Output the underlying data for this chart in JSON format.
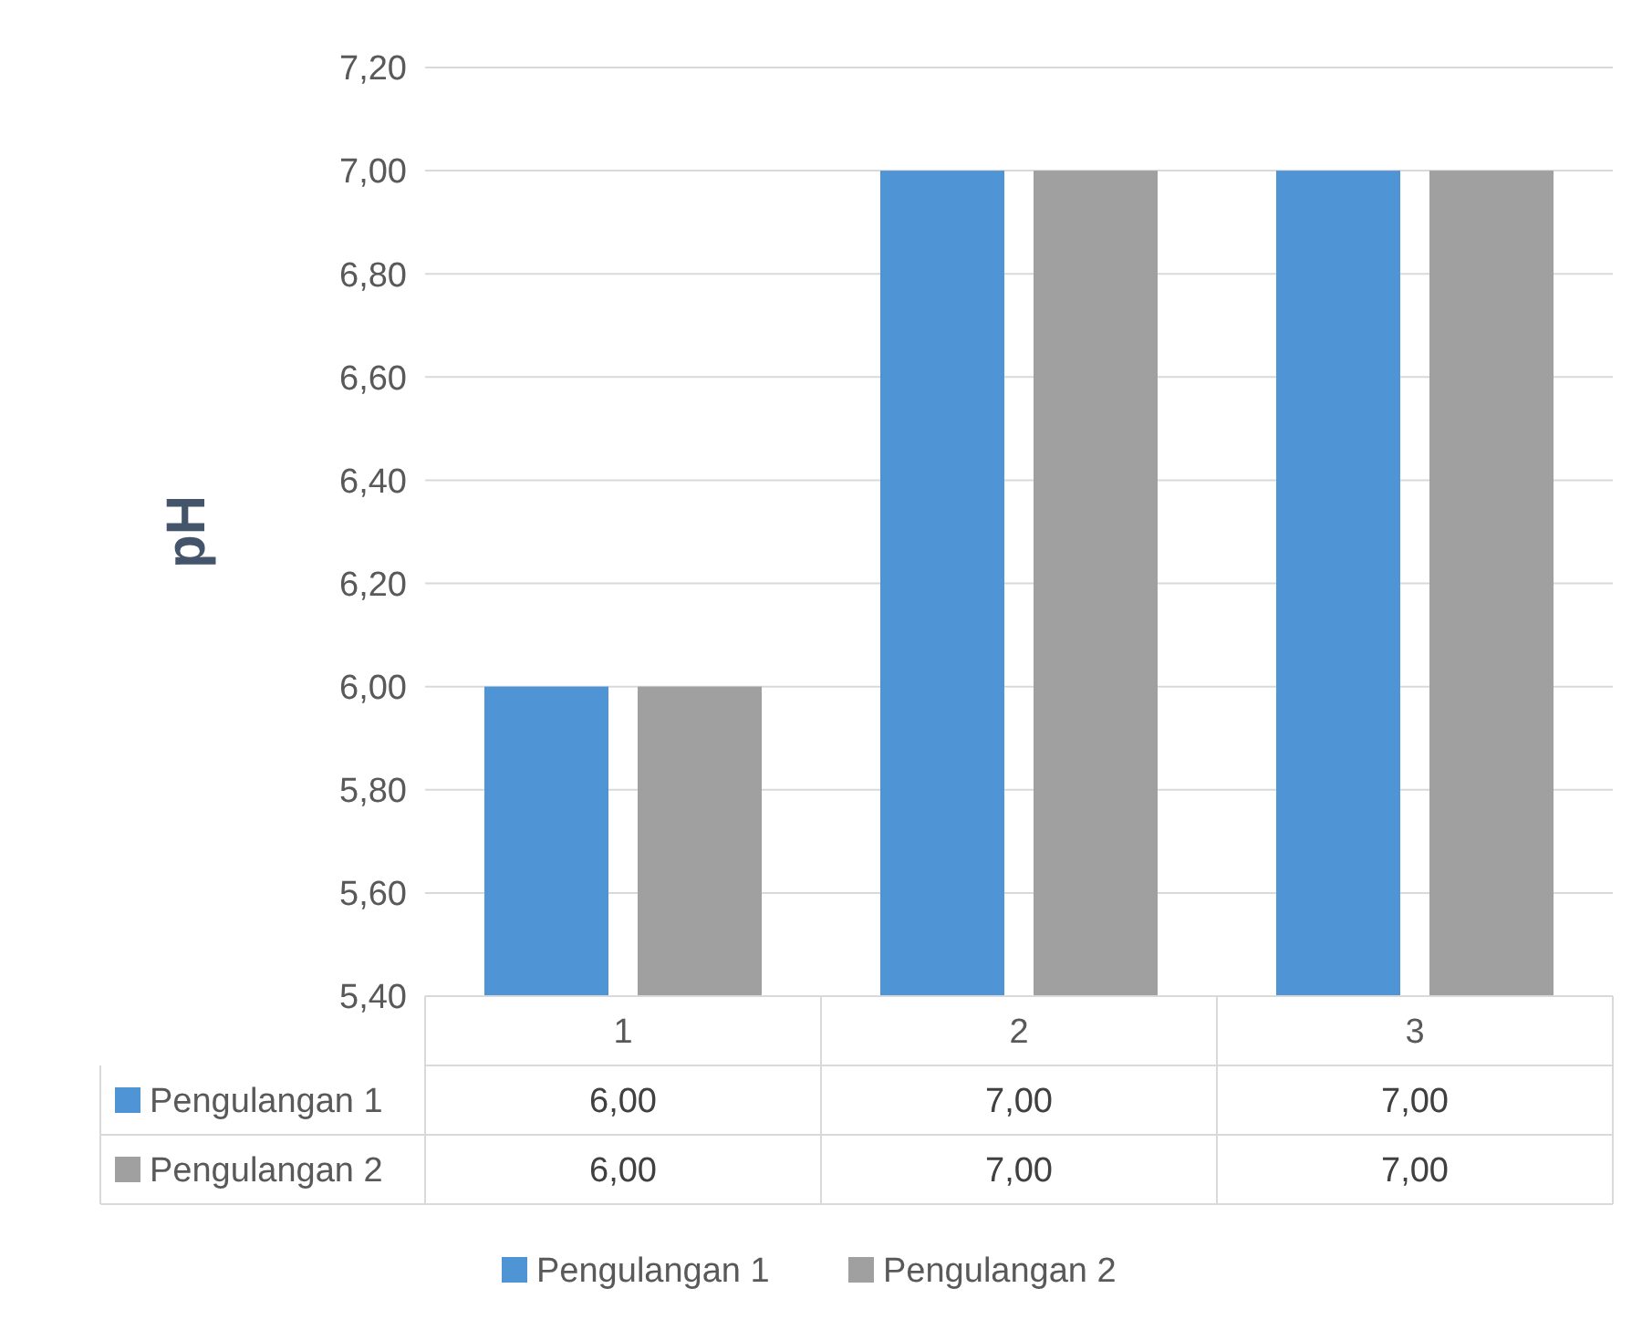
{
  "chart_data": {
    "type": "bar",
    "ylabel": "pH",
    "categories": [
      "1",
      "2",
      "3"
    ],
    "series": [
      {
        "name": "Pengulangan 1",
        "color": "#4f95d6",
        "values": [
          6,
          7,
          7
        ],
        "value_labels": [
          "6,00",
          "7,00",
          "7,00"
        ]
      },
      {
        "name": "Pengulangan 2",
        "color": "#a0a0a0",
        "values": [
          6,
          7,
          7
        ],
        "value_labels": [
          "6,00",
          "7,00",
          "7,00"
        ]
      }
    ],
    "ylim": [
      5.4,
      7.2
    ],
    "yticks": [
      {
        "value": 5.4,
        "label": "5,40"
      },
      {
        "value": 5.6,
        "label": "5,60"
      },
      {
        "value": 5.8,
        "label": "5,80"
      },
      {
        "value": 6,
        "label": "6,00"
      },
      {
        "value": 6.2,
        "label": "6,20"
      },
      {
        "value": 6.4,
        "label": "6,40"
      },
      {
        "value": 6.6,
        "label": "6,60"
      },
      {
        "value": 6.8,
        "label": "6,80"
      },
      {
        "value": 7,
        "label": "7,00"
      },
      {
        "value": 7.2,
        "label": "7,20"
      }
    ],
    "grid": "y",
    "legend": "bottom"
  }
}
